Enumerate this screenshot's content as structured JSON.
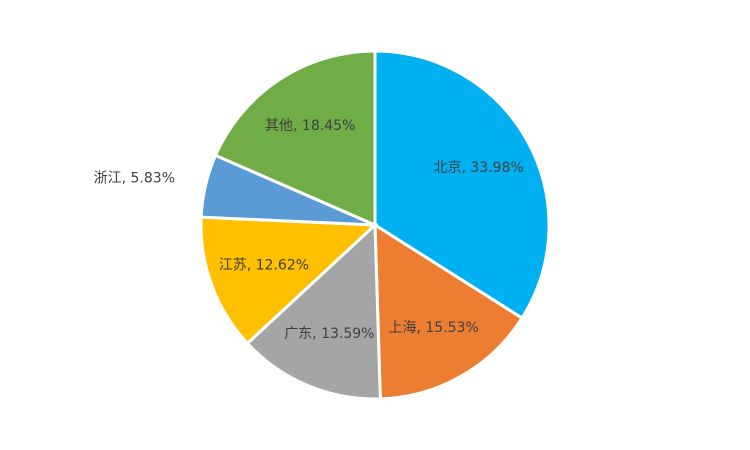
{
  "chart_data": {
    "type": "pie",
    "values": [
      33.98,
      15.53,
      13.59,
      12.62,
      5.83,
      18.45
    ],
    "value_labels": [
      "北京, 33.98%",
      "上海, 15.53%",
      "广东, 13.59%",
      "江苏, 12.62%",
      "浙江, 5.83%",
      "其他, 18.45%"
    ],
    "colors": [
      "#00b0f0",
      "#ed7d31",
      "#a5a5a5",
      "#ffc000",
      "#5b9bd5",
      "#70ad47"
    ]
  }
}
